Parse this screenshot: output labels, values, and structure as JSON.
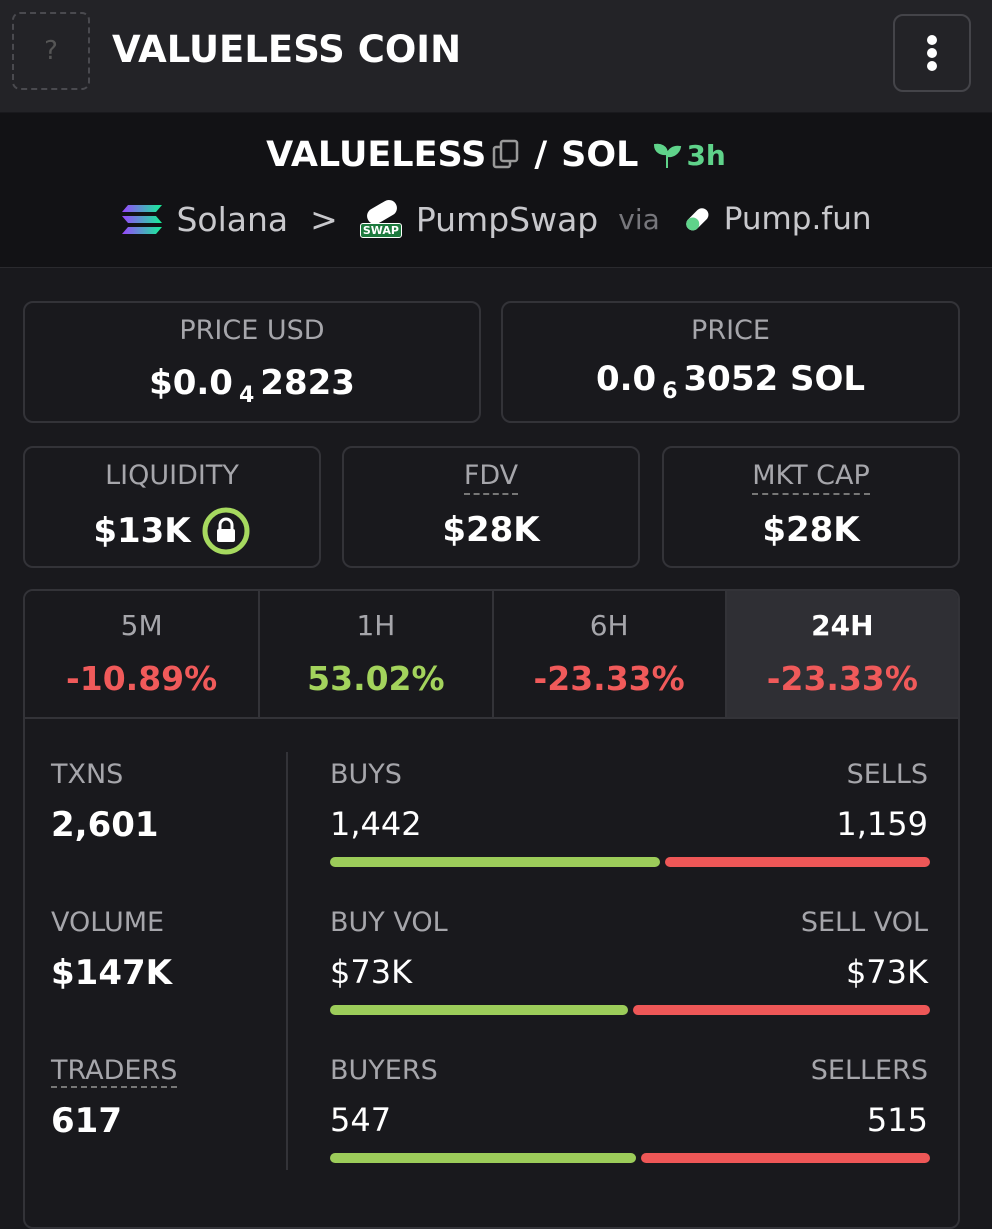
{
  "header": {
    "icon": "?",
    "title": "VALUELESS COIN"
  },
  "pair": {
    "base": "VALUELESS",
    "separator": "/",
    "quote": "SOL",
    "age": "3h",
    "chain": "Solana",
    "arrow": ">",
    "dex": "PumpSwap",
    "dex_badge": "SWAP",
    "via": "via",
    "launchpad": "Pump.fun"
  },
  "prices": [
    {
      "label": "PRICE USD",
      "prefix": "$0.0",
      "zeros": "4",
      "digits": "2823"
    },
    {
      "label": "PRICE",
      "prefix": "0.0",
      "zeros": "6",
      "digits": "3052 SOL"
    }
  ],
  "metrics": [
    {
      "label": "LIQUIDITY",
      "value": "$13K"
    },
    {
      "label": "FDV",
      "value": "$28K"
    },
    {
      "label": "MKT CAP",
      "value": "$28K"
    }
  ],
  "tabs": [
    {
      "label": "5M",
      "change": "-10.89%"
    },
    {
      "label": "1H",
      "change": "53.02%"
    },
    {
      "label": "6H",
      "change": "-23.33%"
    },
    {
      "label": "24H",
      "change": "-23.33%"
    }
  ],
  "stats": [
    {
      "label": "TXNS",
      "value": "2,601",
      "buy_label": "BUYS",
      "buy_value": "1,442",
      "sell_label": "SELLS",
      "sell_value": "1,159"
    },
    {
      "label": "VOLUME",
      "value": "$147K",
      "buy_label": "BUY VOL",
      "buy_value": "$73K",
      "sell_label": "SELL VOL",
      "sell_value": "$73K"
    },
    {
      "label": "TRADERS",
      "value": "617",
      "buy_label": "BUYERS",
      "buy_value": "547",
      "sell_label": "SELLERS",
      "sell_value": "515"
    }
  ]
}
